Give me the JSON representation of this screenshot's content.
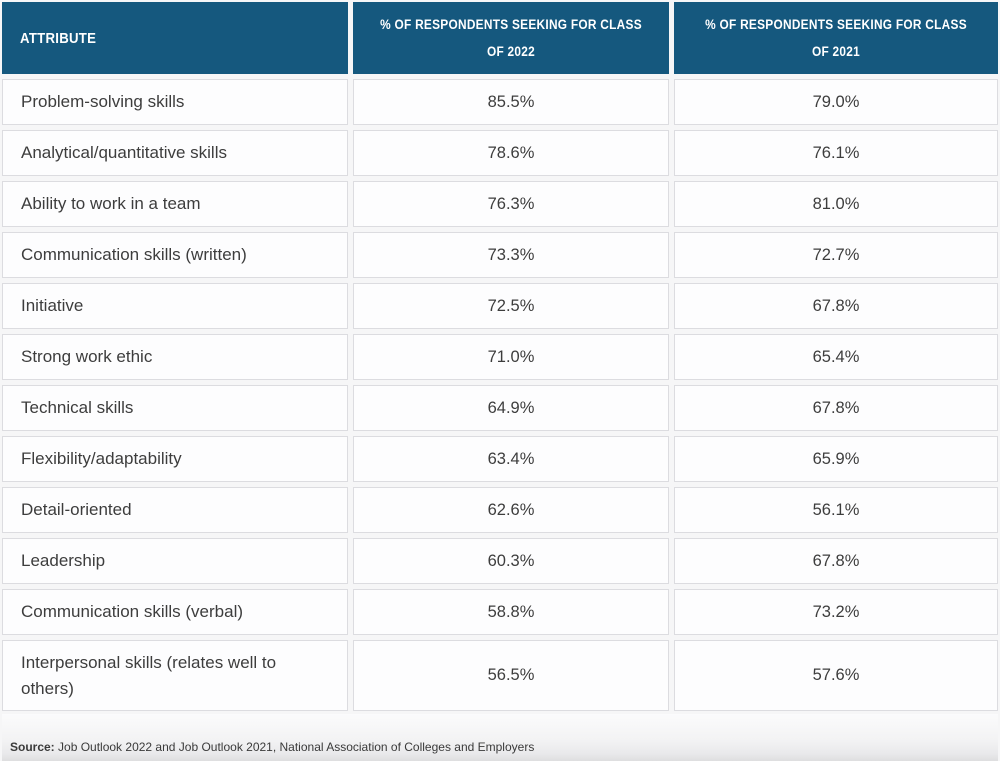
{
  "chart_data": {
    "type": "table",
    "columns": [
      "ATTRIBUTE",
      "% OF RESPONDENTS SEEKING FOR CLASS OF 2022",
      "% OF RESPONDENTS SEEKING FOR CLASS OF 2021"
    ],
    "rows": [
      [
        "Problem-solving skills",
        "85.5%",
        "79.0%"
      ],
      [
        "Analytical/quantitative skills",
        "78.6%",
        "76.1%"
      ],
      [
        "Ability to work in a team",
        "76.3%",
        "81.0%"
      ],
      [
        "Communication skills (written)",
        "73.3%",
        "72.7%"
      ],
      [
        "Initiative",
        "72.5%",
        "67.8%"
      ],
      [
        "Strong work ethic",
        "71.0%",
        "65.4%"
      ],
      [
        "Technical skills",
        "64.9%",
        "67.8%"
      ],
      [
        "Flexibility/adaptability",
        "63.4%",
        "65.9%"
      ],
      [
        "Detail-oriented",
        "62.6%",
        "56.1%"
      ],
      [
        "Leadership",
        "60.3%",
        "67.8%"
      ],
      [
        "Communication skills (verbal)",
        "58.8%",
        "73.2%"
      ],
      [
        "Interpersonal skills (relates well to others)",
        "56.5%",
        "57.6%"
      ]
    ],
    "legend_position": "none",
    "grid": "cell-borders"
  },
  "footer": {
    "source_label": "Source:",
    "source_text": " Job Outlook 2022 and Job Outlook 2021, National Association of Colleges and Employers"
  },
  "colors": {
    "header_bg": "#15587e",
    "header_text": "#ffffff",
    "cell_bg": "#fdfdfe",
    "cell_border": "#dcdce0",
    "body_text": "#3d3d3d",
    "page_bg": "#f6f6f7"
  }
}
